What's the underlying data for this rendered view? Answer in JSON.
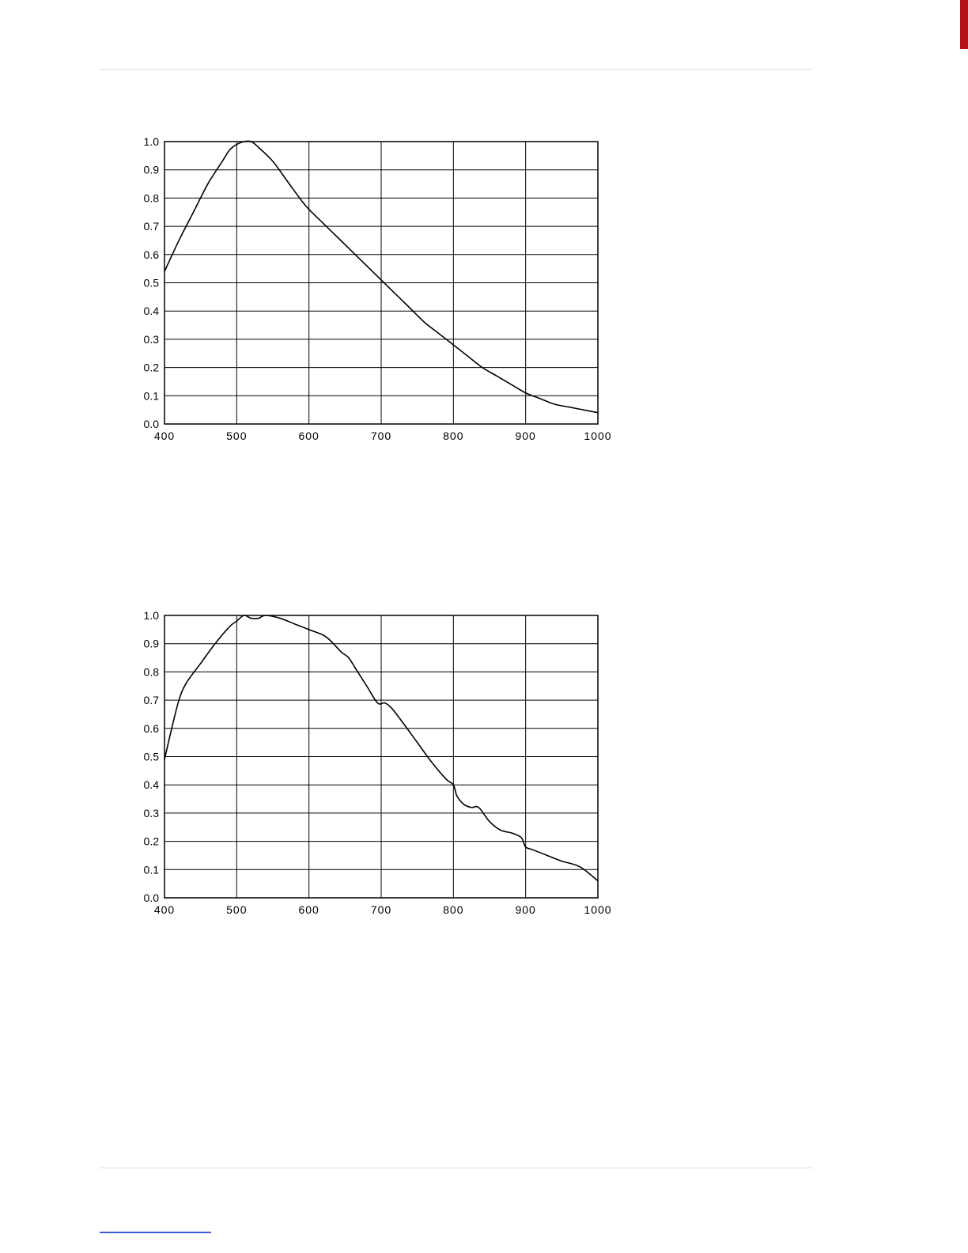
{
  "page": {
    "accent_color": "#b5121b",
    "rule_color": "#dcdcdc",
    "link_color": "#3b5bdb"
  },
  "chart_data": [
    {
      "type": "line",
      "xlim": [
        400,
        1000
      ],
      "ylim": [
        0.0,
        1.0
      ],
      "x_ticks": [
        "400",
        "500",
        "600",
        "700",
        "800",
        "900",
        "1000"
      ],
      "y_ticks": [
        "0.0",
        "0.1",
        "0.2",
        "0.3",
        "0.4",
        "0.5",
        "0.6",
        "0.7",
        "0.8",
        "0.9",
        "1.0"
      ],
      "grid": true,
      "series": [
        {
          "x": [
            400,
            420,
            440,
            460,
            480,
            490,
            500,
            510,
            520,
            530,
            550,
            570,
            590,
            600,
            620,
            640,
            660,
            680,
            700,
            720,
            740,
            760,
            780,
            800,
            820,
            840,
            860,
            880,
            900,
            920,
            940,
            960,
            980,
            1000
          ],
          "y": [
            0.54,
            0.65,
            0.75,
            0.85,
            0.93,
            0.97,
            0.99,
            1.0,
            1.0,
            0.98,
            0.93,
            0.86,
            0.79,
            0.76,
            0.71,
            0.66,
            0.61,
            0.56,
            0.51,
            0.46,
            0.41,
            0.36,
            0.32,
            0.28,
            0.24,
            0.2,
            0.17,
            0.14,
            0.11,
            0.09,
            0.07,
            0.06,
            0.05,
            0.04
          ]
        }
      ]
    },
    {
      "type": "line",
      "xlim": [
        400,
        1000
      ],
      "ylim": [
        0.0,
        1.0
      ],
      "x_ticks": [
        "400",
        "500",
        "600",
        "700",
        "800",
        "900",
        "1000"
      ],
      "y_ticks": [
        "0.0",
        "0.1",
        "0.2",
        "0.3",
        "0.4",
        "0.5",
        "0.6",
        "0.7",
        "0.8",
        "0.9",
        "1.0"
      ],
      "grid": true,
      "series": [
        {
          "x": [
            400,
            410,
            420,
            430,
            450,
            470,
            490,
            500,
            510,
            520,
            530,
            540,
            560,
            580,
            600,
            620,
            630,
            645,
            655,
            665,
            680,
            695,
            705,
            715,
            730,
            750,
            770,
            790,
            800,
            805,
            815,
            825,
            835,
            850,
            865,
            880,
            890,
            895,
            900,
            910,
            930,
            950,
            975,
            1000
          ],
          "y": [
            0.49,
            0.6,
            0.7,
            0.76,
            0.83,
            0.9,
            0.96,
            0.98,
            1.0,
            0.99,
            0.99,
            1.0,
            0.99,
            0.97,
            0.95,
            0.93,
            0.91,
            0.87,
            0.85,
            0.81,
            0.75,
            0.69,
            0.69,
            0.67,
            0.62,
            0.55,
            0.48,
            0.42,
            0.4,
            0.36,
            0.33,
            0.32,
            0.32,
            0.27,
            0.24,
            0.23,
            0.22,
            0.21,
            0.18,
            0.17,
            0.15,
            0.13,
            0.11,
            0.06
          ]
        }
      ]
    }
  ]
}
